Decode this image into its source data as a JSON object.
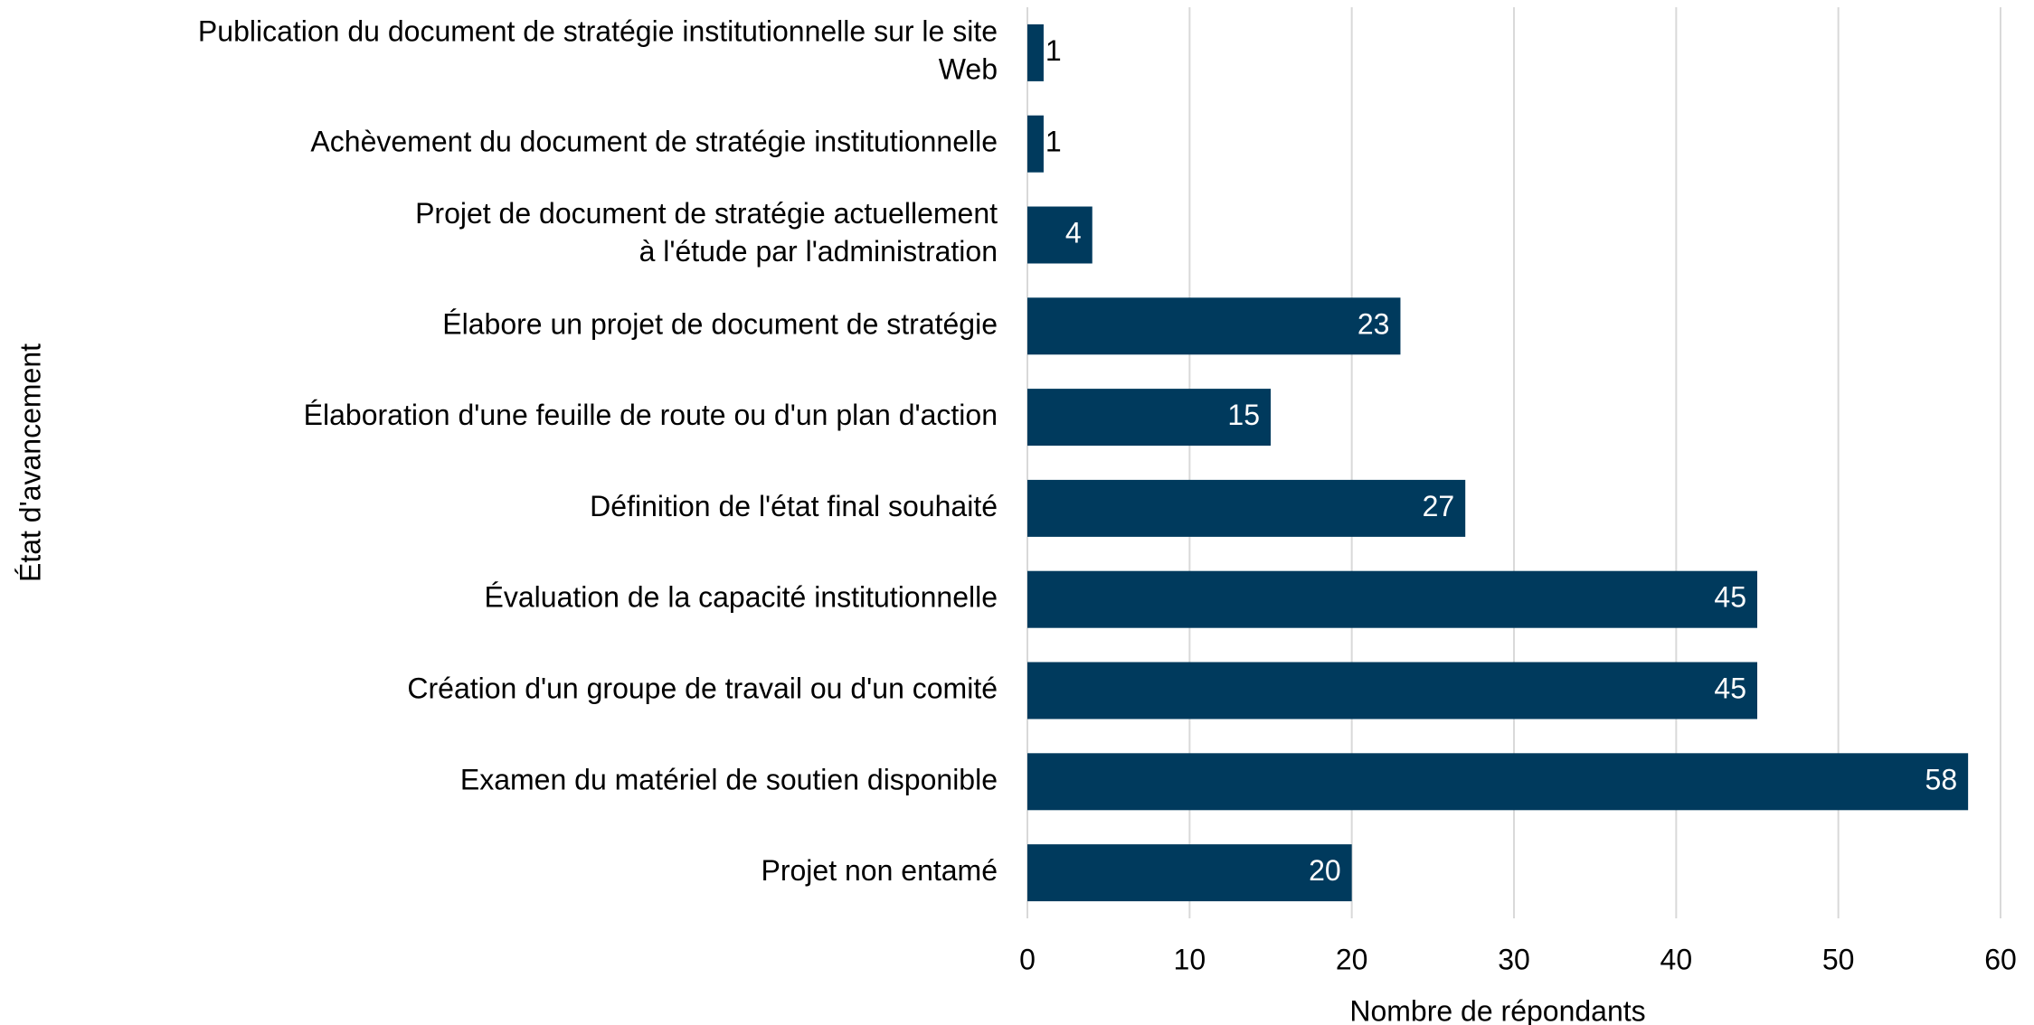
{
  "chart_data": {
    "type": "barh",
    "categories": [
      "Publication du document de stratégie institutionnelle sur le site\nWeb",
      "Achèvement du document de stratégie institutionnelle",
      "Projet de document de stratégie actuellement\nà l'étude par l'administration",
      "Élabore un projet de document de stratégie",
      "Élaboration d'une feuille de route ou d'un plan d'action",
      "Définition de l'état final souhaité",
      "Évaluation de la capacité institutionnelle",
      "Création d'un groupe de travail ou d'un comité",
      "Examen du matériel de soutien disponible",
      "Projet non entamé"
    ],
    "values": [
      1,
      1,
      4,
      23,
      15,
      27,
      45,
      45,
      58,
      20
    ],
    "color": "#003a5d",
    "xlabel": "Nombre de répondants",
    "ylabel": "État d'avancement",
    "xlim": [
      0,
      60
    ],
    "xticks": [
      0,
      10,
      20,
      30,
      40,
      50,
      60
    ],
    "grid": true
  }
}
